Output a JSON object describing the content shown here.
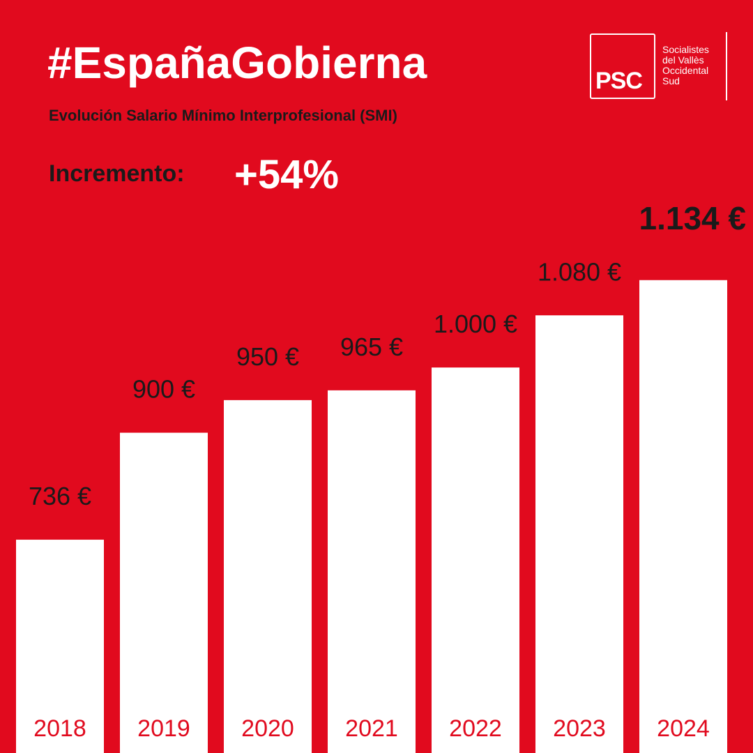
{
  "header": {
    "hashtag": "#EspañaGobierna",
    "subtitle": "Evolución Salario Mínimo Interprofesional (SMI)",
    "increment_label": "Incremento:",
    "increment_value": "+54%"
  },
  "logo": {
    "mark": "PSC",
    "lines": [
      "Socialistes",
      "del Vallès",
      "Occidental",
      "Sud"
    ]
  },
  "colors": {
    "background": "#e10a1e",
    "bar": "#ffffff",
    "value_label": "#1a1a1a",
    "year_label": "#e10a1e"
  },
  "chart_data": {
    "type": "bar",
    "categories": [
      "2018",
      "2019",
      "2020",
      "2021",
      "2022",
      "2023",
      "2024"
    ],
    "values": [
      736,
      900,
      950,
      965,
      1000,
      1080,
      1134
    ],
    "value_labels": [
      "736 €",
      "900 €",
      "950 €",
      "965 €",
      "1.000 €",
      "1.080 €",
      "1.134 €"
    ],
    "highlight_last": true,
    "grid": false,
    "legend": "none"
  }
}
